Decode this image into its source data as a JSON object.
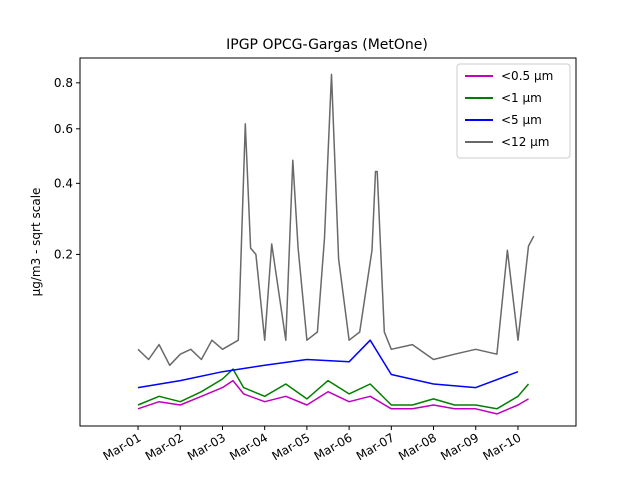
{
  "chart_data": {
    "type": "line",
    "title": "IPGP OPCG-Gargas (MetOne)",
    "xlabel": "",
    "ylabel": "µg/m3 - sqrt scale",
    "y_scale": "sqrt",
    "ylim": [
      0,
      0.92
    ],
    "xlim": [
      "2024-02-28 15:00",
      "2024-03-11 09:00"
    ],
    "x_ticks": [
      {
        "date": "2024-03-01",
        "label": "Mar-01"
      },
      {
        "date": "2024-03-02",
        "label": "Mar-02"
      },
      {
        "date": "2024-03-03",
        "label": "Mar-03"
      },
      {
        "date": "2024-03-04",
        "label": "Mar-04"
      },
      {
        "date": "2024-03-05",
        "label": "Mar-05"
      },
      {
        "date": "2024-03-06",
        "label": "Mar-06"
      },
      {
        "date": "2024-03-07",
        "label": "Mar-07"
      },
      {
        "date": "2024-03-08",
        "label": "Mar-08"
      },
      {
        "date": "2024-03-09",
        "label": "Mar-09"
      },
      {
        "date": "2024-03-10",
        "label": "Mar-10"
      }
    ],
    "y_ticks": [
      {
        "value": 0.2,
        "label": "0.2"
      },
      {
        "value": 0.4,
        "label": "0.4"
      },
      {
        "value": 0.6,
        "label": "0.6"
      },
      {
        "value": 0.8,
        "label": "0.8"
      }
    ],
    "legend_position": "top-right",
    "grid": false,
    "series": [
      {
        "name": "<0.5 µm",
        "color": "#bf00bf",
        "x": [
          "2024-03-01 00:00",
          "2024-03-01 12:00",
          "2024-03-02 00:00",
          "2024-03-02 12:00",
          "2024-03-03 00:00",
          "2024-03-03 06:00",
          "2024-03-03 12:00",
          "2024-03-04 00:00",
          "2024-03-04 12:00",
          "2024-03-05 00:00",
          "2024-03-05 12:00",
          "2024-03-06 00:00",
          "2024-03-06 12:00",
          "2024-03-07 00:00",
          "2024-03-07 12:00",
          "2024-03-08 00:00",
          "2024-03-08 12:00",
          "2024-03-09 00:00",
          "2024-03-09 12:00",
          "2024-03-10 00:00",
          "2024-03-10 06:00"
        ],
        "y": [
          0.002,
          0.004,
          0.003,
          0.006,
          0.01,
          0.014,
          0.007,
          0.004,
          0.006,
          0.003,
          0.008,
          0.004,
          0.006,
          0.002,
          0.002,
          0.003,
          0.002,
          0.002,
          0.001,
          0.003,
          0.005
        ]
      },
      {
        "name": "<1 µm",
        "color": "#008000",
        "x": [
          "2024-03-01 00:00",
          "2024-03-01 12:00",
          "2024-03-02 00:00",
          "2024-03-02 12:00",
          "2024-03-03 00:00",
          "2024-03-03 06:00",
          "2024-03-03 12:00",
          "2024-03-04 00:00",
          "2024-03-04 12:00",
          "2024-03-05 00:00",
          "2024-03-05 12:00",
          "2024-03-06 00:00",
          "2024-03-06 12:00",
          "2024-03-07 00:00",
          "2024-03-07 12:00",
          "2024-03-08 00:00",
          "2024-03-08 12:00",
          "2024-03-09 00:00",
          "2024-03-09 12:00",
          "2024-03-10 00:00",
          "2024-03-10 06:00"
        ],
        "y": [
          0.003,
          0.006,
          0.004,
          0.008,
          0.015,
          0.022,
          0.01,
          0.006,
          0.012,
          0.005,
          0.014,
          0.007,
          0.012,
          0.003,
          0.003,
          0.005,
          0.003,
          0.003,
          0.002,
          0.006,
          0.012
        ]
      },
      {
        "name": "<5 µm",
        "color": "#0000ff",
        "x": [
          "2024-03-01 00:00",
          "2024-03-02 00:00",
          "2024-03-03 00:00",
          "2024-03-04 00:00",
          "2024-03-05 00:00",
          "2024-03-06 00:00",
          "2024-03-06 12:00",
          "2024-03-07 00:00",
          "2024-03-08 00:00",
          "2024-03-09 00:00",
          "2024-03-10 00:00"
        ],
        "y": [
          0.01,
          0.014,
          0.02,
          0.025,
          0.03,
          0.028,
          0.05,
          0.018,
          0.012,
          0.01,
          0.02
        ]
      },
      {
        "name": "<12 µm",
        "color": "#696969",
        "x": [
          "2024-03-01 00:00",
          "2024-03-01 06:00",
          "2024-03-01 12:00",
          "2024-03-01 18:00",
          "2024-03-02 00:00",
          "2024-03-02 06:00",
          "2024-03-02 12:00",
          "2024-03-02 18:00",
          "2024-03-03 00:00",
          "2024-03-03 09:00",
          "2024-03-03 13:00",
          "2024-03-03 16:00",
          "2024-03-03 19:00",
          "2024-03-04 00:00",
          "2024-03-04 04:00",
          "2024-03-04 12:00",
          "2024-03-04 16:00",
          "2024-03-04 19:00",
          "2024-03-05 00:00",
          "2024-03-05 06:00",
          "2024-03-05 10:00",
          "2024-03-05 12:00",
          "2024-03-05 14:00",
          "2024-03-05 18:00",
          "2024-03-06 00:00",
          "2024-03-06 06:00",
          "2024-03-06 13:00",
          "2024-03-06 15:00",
          "2024-03-06 16:00",
          "2024-03-06 20:00",
          "2024-03-07 00:00",
          "2024-03-07 12:00",
          "2024-03-08 00:00",
          "2024-03-08 12:00",
          "2024-03-09 00:00",
          "2024-03-09 12:00",
          "2024-03-09 18:00",
          "2024-03-10 00:00",
          "2024-03-10 06:00",
          "2024-03-10 09:00"
        ],
        "y": [
          0.04,
          0.03,
          0.045,
          0.025,
          0.035,
          0.04,
          0.03,
          0.05,
          0.04,
          0.05,
          0.62,
          0.215,
          0.2,
          0.05,
          0.225,
          0.05,
          0.48,
          0.215,
          0.05,
          0.06,
          0.24,
          0.5,
          0.84,
          0.19,
          0.05,
          0.06,
          0.21,
          0.44,
          0.44,
          0.06,
          0.04,
          0.045,
          0.03,
          0.035,
          0.04,
          0.035,
          0.21,
          0.05,
          0.22,
          0.245
        ]
      }
    ]
  }
}
